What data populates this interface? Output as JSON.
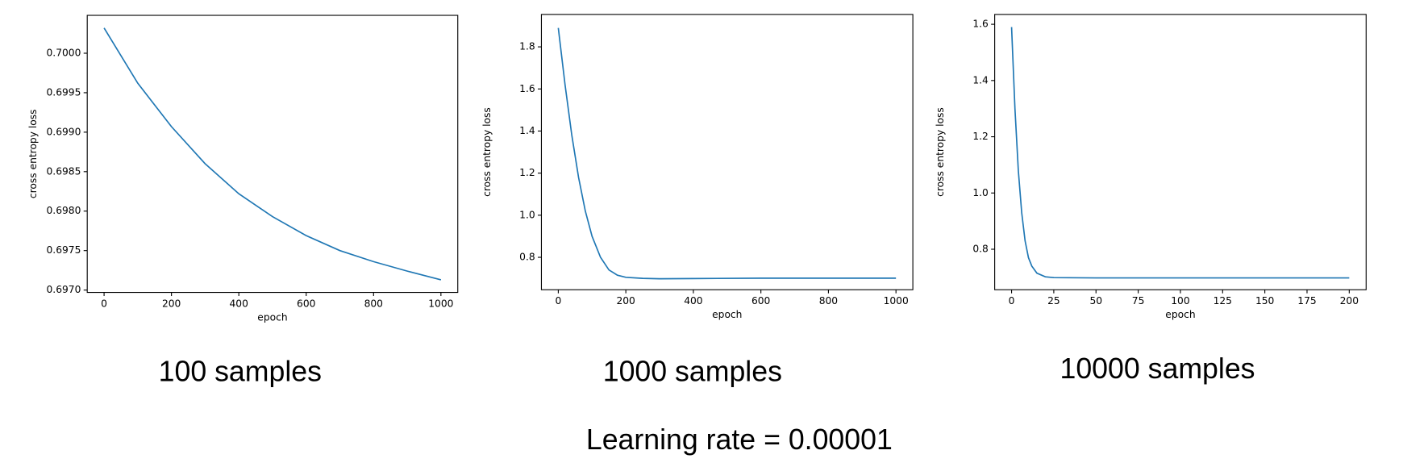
{
  "chart_data": [
    {
      "type": "line",
      "title": "100 samples",
      "xlabel": "epoch",
      "ylabel": "cross entropy loss",
      "x": [
        0,
        100,
        200,
        300,
        400,
        500,
        600,
        700,
        800,
        900,
        1000
      ],
      "series": [
        {
          "color": "#1f77b4",
          "values": [
            0.70032,
            0.69962,
            0.69907,
            0.6986,
            0.69822,
            0.69793,
            0.69769,
            0.6975,
            0.69736,
            0.69724,
            0.69713
          ]
        }
      ],
      "xlim": [
        -50,
        1050
      ],
      "xticks": [
        0,
        200,
        400,
        600,
        800,
        1000
      ],
      "ylim": [
        0.69697,
        0.70048
      ],
      "yticks": [
        {
          "value": 0.697,
          "label": "0.6970"
        },
        0.6975,
        {
          "value": 0.698,
          "label": "0.6980"
        },
        0.6985,
        {
          "value": 0.699,
          "label": "0.6990"
        },
        0.6995,
        {
          "value": 0.7,
          "label": "0.7000"
        }
      ]
    },
    {
      "type": "line",
      "title": "1000 samples",
      "xlabel": "epoch",
      "ylabel": "cross entropy loss",
      "x": [
        0,
        20,
        40,
        60,
        80,
        100,
        125,
        150,
        175,
        200,
        250,
        300,
        400,
        600,
        800,
        1000
      ],
      "series": [
        {
          "color": "#1f77b4",
          "values": [
            1.89,
            1.62,
            1.38,
            1.18,
            1.02,
            0.9,
            0.8,
            0.74,
            0.715,
            0.705,
            0.7,
            0.698,
            0.699,
            0.701,
            0.701,
            0.701
          ]
        }
      ],
      "xlim": [
        -50,
        1050
      ],
      "xticks": [
        0,
        200,
        400,
        600,
        800,
        1000
      ],
      "ylim": [
        0.646,
        1.954
      ],
      "yticks": [
        0.8,
        {
          "value": 1,
          "label": "1.0"
        },
        1.2,
        1.4,
        1.6,
        1.8
      ]
    },
    {
      "type": "line",
      "title": "10000 samples",
      "xlabel": "epoch",
      "ylabel": "cross entropy loss",
      "x": [
        0,
        2,
        4,
        6,
        8,
        10,
        12,
        15,
        20,
        25,
        50,
        100,
        150,
        200
      ],
      "series": [
        {
          "color": "#1f77b4",
          "values": [
            1.59,
            1.3,
            1.08,
            0.93,
            0.83,
            0.77,
            0.74,
            0.715,
            0.702,
            0.699,
            0.698,
            0.698,
            0.698,
            0.698
          ]
        }
      ],
      "xlim": [
        -10,
        210
      ],
      "xticks": [
        0,
        25,
        50,
        75,
        100,
        125,
        150,
        175,
        200
      ],
      "ylim": [
        0.656,
        1.635
      ],
      "yticks": [
        0.8,
        {
          "value": 1,
          "label": "1.0"
        },
        1.2,
        1.4,
        1.6
      ]
    }
  ],
  "caption": "Learning rate = 0.00001"
}
